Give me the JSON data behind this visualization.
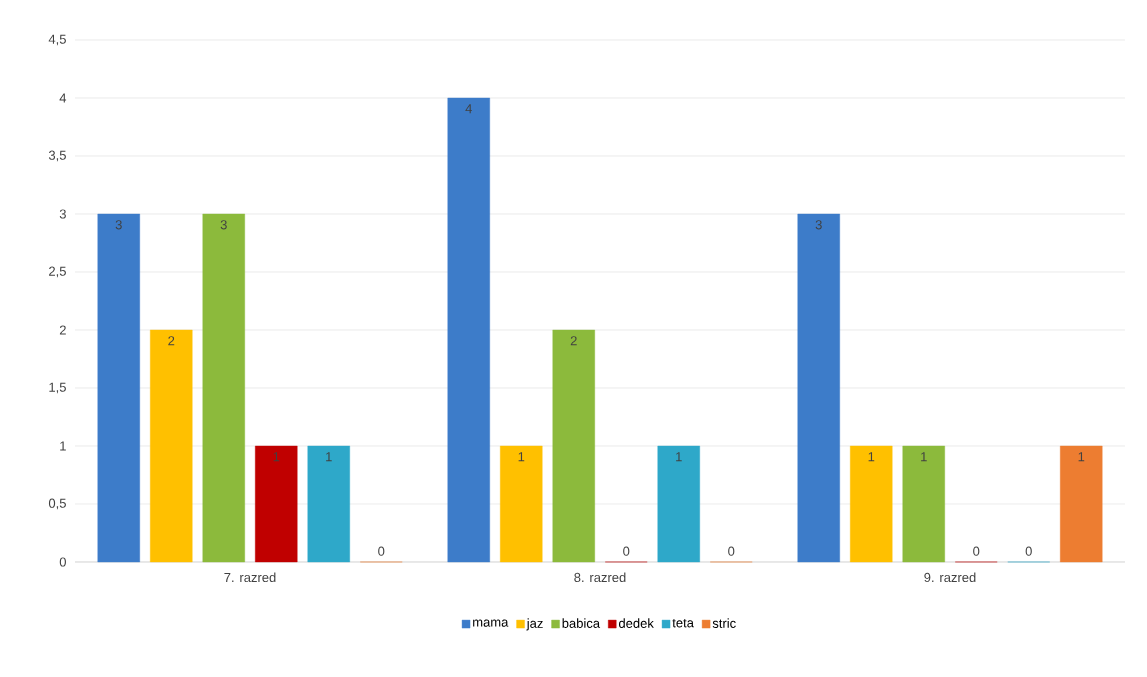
{
  "chart_data": {
    "type": "bar",
    "categories": [
      "7. razred",
      "8. razred",
      "9. razred"
    ],
    "series": [
      {
        "name": "mama",
        "color": "#3d7cc9",
        "values": [
          3,
          4,
          3
        ]
      },
      {
        "name": "jaz",
        "color": "#ffc000",
        "values": [
          2,
          1,
          1
        ]
      },
      {
        "name": "babica",
        "color": "#8cba3c",
        "values": [
          3,
          2,
          1
        ]
      },
      {
        "name": "dedek",
        "color": "#c00000",
        "values": [
          1,
          0,
          0
        ]
      },
      {
        "name": "teta",
        "color": "#2ea8c9",
        "values": [
          1,
          1,
          0
        ]
      },
      {
        "name": "stric",
        "color": "#ed7d31",
        "values": [
          0,
          0,
          1
        ]
      }
    ],
    "ylim": [
      0,
      4.5
    ],
    "yticks": [
      0,
      {
        "value": 0.5,
        "label": "0,5"
      },
      1,
      {
        "value": 1.5,
        "label": "1,5"
      },
      2,
      {
        "value": 2.5,
        "label": "2,5"
      },
      3,
      {
        "value": 3.5,
        "label": "3,5"
      },
      4,
      {
        "value": 4.5,
        "label": "4,5"
      }
    ],
    "grid": "y",
    "legend": "bottom",
    "data_labels": true
  }
}
